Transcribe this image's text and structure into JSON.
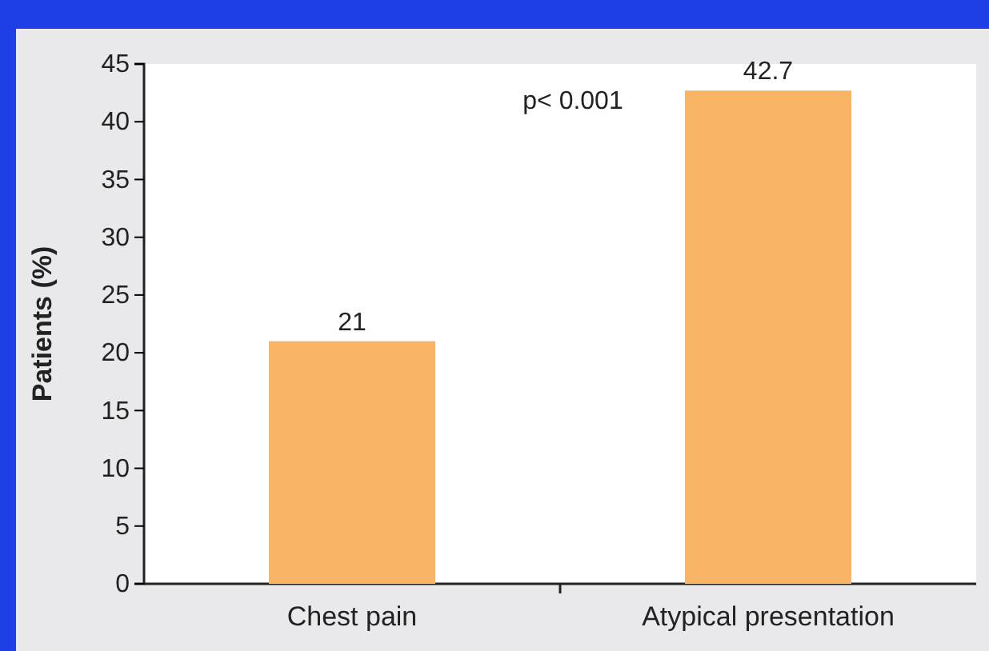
{
  "chart_data": {
    "type": "bar",
    "ylabel": "Patients (%)",
    "categories": [
      "Chest pain",
      "Atypical presentation"
    ],
    "values": [
      21,
      42.7
    ],
    "color": "#f9b465",
    "ylim": [
      0,
      45
    ],
    "yticks": [
      0,
      5,
      10,
      15,
      20,
      25,
      30,
      35,
      40,
      45
    ],
    "data_labels": true,
    "annotations": [
      "p< 0.001"
    ]
  }
}
